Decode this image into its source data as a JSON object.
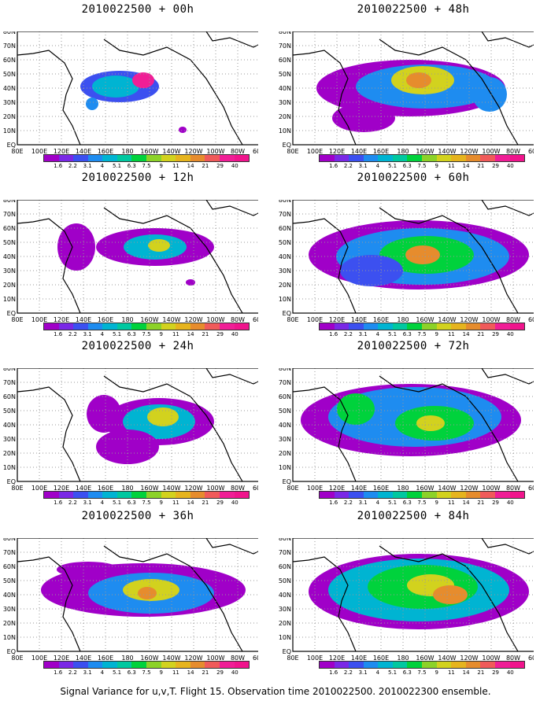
{
  "caption": "Signal Variance for u,v,T. Flight 15. Observation time 2010022500. 2010022300 ensemble.",
  "colorbar": {
    "levels": [
      "1.6",
      "2.2",
      "3.1",
      "4",
      "5.1",
      "6.3",
      "7.5",
      "9",
      "11",
      "14",
      "21",
      "29",
      "40"
    ],
    "colors": [
      "#a000c8",
      "#7a28e6",
      "#3c50f0",
      "#1e8cf0",
      "#00b4d2",
      "#00c8a0",
      "#00d23c",
      "#8cd228",
      "#d2d21e",
      "#e6b41e",
      "#e68c2d",
      "#f05a5a",
      "#f01e96",
      "#f0148c"
    ]
  },
  "axis": {
    "lon_labels": [
      "80E",
      "100E",
      "120E",
      "140E",
      "160E",
      "180",
      "160W",
      "140W",
      "120W",
      "100W",
      "80W",
      "60W"
    ],
    "lat_labels": [
      "EQ",
      "10N",
      "20N",
      "30N",
      "40N",
      "50N",
      "60N",
      "70N",
      "80N"
    ]
  },
  "chart_data": [
    {
      "type": "heatmap",
      "title": "2010022500 + 00h",
      "base_time": "2010022500",
      "lead": "00h",
      "maxima": [
        {
          "lon": "160W",
          "lat": "45N",
          "level": "40"
        }
      ]
    },
    {
      "type": "heatmap",
      "title": "2010022500 + 48h",
      "base_time": "2010022500",
      "lead": "48h",
      "maxima": [
        {
          "lon": "160W",
          "lat": "42N",
          "level": "14"
        }
      ]
    },
    {
      "type": "heatmap",
      "title": "2010022500 + 12h",
      "base_time": "2010022500",
      "lead": "12h",
      "maxima": [
        {
          "lon": "160W",
          "lat": "48N",
          "level": "9"
        }
      ]
    },
    {
      "type": "heatmap",
      "title": "2010022500 + 60h",
      "base_time": "2010022500",
      "lead": "60h",
      "maxima": [
        {
          "lon": "160W",
          "lat": "45N",
          "level": "14"
        }
      ]
    },
    {
      "type": "heatmap",
      "title": "2010022500 + 24h",
      "base_time": "2010022500",
      "lead": "24h",
      "maxima": [
        {
          "lon": "140W",
          "lat": "42N",
          "level": "11"
        }
      ]
    },
    {
      "type": "heatmap",
      "title": "2010022500 + 72h",
      "base_time": "2010022500",
      "lead": "72h",
      "maxima": [
        {
          "lon": "150W",
          "lat": "45N",
          "level": "11"
        }
      ]
    },
    {
      "type": "heatmap",
      "title": "2010022500 + 36h",
      "base_time": "2010022500",
      "lead": "36h",
      "maxima": [
        {
          "lon": "160W",
          "lat": "40N",
          "level": "14"
        }
      ]
    },
    {
      "type": "heatmap",
      "title": "2010022500 + 84h",
      "base_time": "2010022500",
      "lead": "84h",
      "maxima": [
        {
          "lon": "140W",
          "lat": "45N",
          "level": "14"
        }
      ]
    }
  ]
}
